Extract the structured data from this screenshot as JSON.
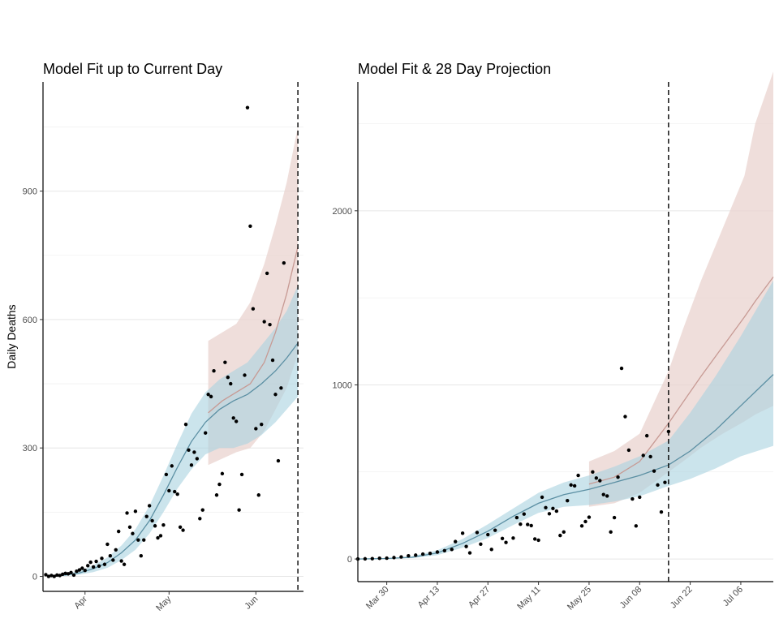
{
  "chart_data": [
    {
      "type": "line",
      "title": "Model Fit up to Current Day",
      "xlabel": "",
      "ylabel": "Daily Deaths",
      "x_range": [
        "2020-03-17",
        "2020-06-18"
      ],
      "ylim": [
        -35,
        1155
      ],
      "y_ticks": [
        0,
        300,
        600,
        900
      ],
      "y_minor_grid": [
        150,
        450,
        750,
        1050
      ],
      "x_ticks": [
        {
          "date": "2020-04-01",
          "label": "Apr"
        },
        {
          "date": "2020-05-01",
          "label": "May"
        },
        {
          "date": "2020-06-01",
          "label": "Jun"
        }
      ],
      "current_day": "2020-06-16",
      "grid": "horizontal",
      "colors": {
        "teal_line": "#5b8fa3",
        "teal_band": "#a9d2df",
        "pink_line": "#c79a94",
        "pink_band": "#ead3cf",
        "points": "#000000"
      },
      "series": [
        {
          "name": "",
          "style": "pink",
          "x": [
            "2020-05-15",
            "2020-05-20",
            "2020-05-25",
            "2020-05-30",
            "2020-06-04",
            "2020-06-08",
            "2020-06-12",
            "2020-06-16"
          ],
          "y": [
            382,
            410,
            430,
            450,
            500,
            570,
            660,
            770
          ],
          "low": [
            260,
            275,
            290,
            300,
            340,
            390,
            440,
            520
          ],
          "high": [
            550,
            570,
            590,
            640,
            730,
            820,
            920,
            1050
          ]
        },
        {
          "name": "",
          "style": "teal",
          "x": [
            "2020-03-20",
            "2020-03-25",
            "2020-03-30",
            "2020-04-04",
            "2020-04-09",
            "2020-04-14",
            "2020-04-19",
            "2020-04-24",
            "2020-04-29",
            "2020-05-04",
            "2020-05-09",
            "2020-05-14",
            "2020-05-19",
            "2020-05-24",
            "2020-05-29",
            "2020-06-03",
            "2020-06-08",
            "2020-06-12",
            "2020-06-16"
          ],
          "y": [
            1,
            3,
            8,
            18,
            32,
            55,
            85,
            130,
            190,
            255,
            315,
            360,
            390,
            410,
            425,
            450,
            480,
            510,
            545
          ],
          "low": [
            0,
            1,
            4,
            10,
            20,
            38,
            62,
            100,
            150,
            205,
            250,
            285,
            300,
            300,
            310,
            330,
            360,
            390,
            420
          ],
          "high": [
            3,
            6,
            13,
            26,
            44,
            72,
            110,
            165,
            235,
            310,
            380,
            430,
            460,
            480,
            500,
            540,
            580,
            620,
            680
          ]
        }
      ],
      "points": [
        [
          "2020-03-18",
          4
        ],
        [
          "2020-03-19",
          0
        ],
        [
          "2020-03-20",
          2
        ],
        [
          "2020-03-21",
          0
        ],
        [
          "2020-03-22",
          3
        ],
        [
          "2020-03-23",
          2
        ],
        [
          "2020-03-24",
          5
        ],
        [
          "2020-03-25",
          7
        ],
        [
          "2020-03-26",
          6
        ],
        [
          "2020-03-27",
          9
        ],
        [
          "2020-03-28",
          3
        ],
        [
          "2020-03-29",
          12
        ],
        [
          "2020-03-30",
          15
        ],
        [
          "2020-03-31",
          19
        ],
        [
          "2020-04-01",
          14
        ],
        [
          "2020-04-02",
          25
        ],
        [
          "2020-04-03",
          33
        ],
        [
          "2020-04-04",
          22
        ],
        [
          "2020-04-05",
          35
        ],
        [
          "2020-04-06",
          24
        ],
        [
          "2020-04-07",
          42
        ],
        [
          "2020-04-08",
          28
        ],
        [
          "2020-04-09",
          75
        ],
        [
          "2020-04-10",
          48
        ],
        [
          "2020-04-11",
          38
        ],
        [
          "2020-04-12",
          62
        ],
        [
          "2020-04-13",
          105
        ],
        [
          "2020-04-14",
          36
        ],
        [
          "2020-04-15",
          28
        ],
        [
          "2020-04-16",
          148
        ],
        [
          "2020-04-17",
          115
        ],
        [
          "2020-04-18",
          100
        ],
        [
          "2020-04-19",
          152
        ],
        [
          "2020-04-20",
          85
        ],
        [
          "2020-04-21",
          48
        ],
        [
          "2020-04-22",
          85
        ],
        [
          "2020-04-23",
          140
        ],
        [
          "2020-04-24",
          165
        ],
        [
          "2020-04-25",
          130
        ],
        [
          "2020-04-26",
          118
        ],
        [
          "2020-04-27",
          90
        ],
        [
          "2020-04-28",
          95
        ],
        [
          "2020-04-29",
          120
        ],
        [
          "2020-04-30",
          238
        ],
        [
          "2020-05-01",
          200
        ],
        [
          "2020-05-02",
          258
        ],
        [
          "2020-05-03",
          198
        ],
        [
          "2020-05-04",
          192
        ],
        [
          "2020-05-05",
          115
        ],
        [
          "2020-05-06",
          108
        ],
        [
          "2020-05-07",
          355
        ],
        [
          "2020-05-08",
          295
        ],
        [
          "2020-05-09",
          260
        ],
        [
          "2020-05-10",
          290
        ],
        [
          "2020-05-11",
          275
        ],
        [
          "2020-05-12",
          135
        ],
        [
          "2020-05-13",
          155
        ],
        [
          "2020-05-14",
          335
        ],
        [
          "2020-05-15",
          425
        ],
        [
          "2020-05-16",
          420
        ],
        [
          "2020-05-17",
          480
        ],
        [
          "2020-05-18",
          190
        ],
        [
          "2020-05-19",
          215
        ],
        [
          "2020-05-20",
          240
        ],
        [
          "2020-05-21",
          500
        ],
        [
          "2020-05-22",
          465
        ],
        [
          "2020-05-23",
          450
        ],
        [
          "2020-05-24",
          370
        ],
        [
          "2020-05-25",
          362
        ],
        [
          "2020-05-26",
          155
        ],
        [
          "2020-05-27",
          238
        ],
        [
          "2020-05-28",
          470
        ],
        [
          "2020-05-29",
          1095
        ],
        [
          "2020-05-30",
          818
        ],
        [
          "2020-05-31",
          625
        ],
        [
          "2020-06-01",
          345
        ],
        [
          "2020-06-02",
          190
        ],
        [
          "2020-06-03",
          355
        ],
        [
          "2020-06-04",
          595
        ],
        [
          "2020-06-05",
          708
        ],
        [
          "2020-06-06",
          588
        ],
        [
          "2020-06-07",
          505
        ],
        [
          "2020-06-08",
          425
        ],
        [
          "2020-06-09",
          270
        ],
        [
          "2020-06-10",
          440
        ],
        [
          "2020-06-11",
          732
        ]
      ]
    },
    {
      "type": "line",
      "title": "Model Fit & 28 Day Projection",
      "xlabel": "",
      "ylabel": "",
      "x_range": [
        "2020-03-22",
        "2020-07-15"
      ],
      "ylim": [
        -130,
        2740
      ],
      "y_ticks": [
        0,
        1000,
        2000
      ],
      "y_minor_grid": [
        500,
        1500,
        2500
      ],
      "x_ticks": [
        {
          "date": "2020-03-30",
          "label": "Mar 30"
        },
        {
          "date": "2020-04-13",
          "label": "Apr 13"
        },
        {
          "date": "2020-04-27",
          "label": "Apr 27"
        },
        {
          "date": "2020-05-11",
          "label": "May 11"
        },
        {
          "date": "2020-05-25",
          "label": "May 25"
        },
        {
          "date": "2020-06-08",
          "label": "Jun 08"
        },
        {
          "date": "2020-06-22",
          "label": "Jun 22"
        },
        {
          "date": "2020-07-06",
          "label": "Jul 06"
        }
      ],
      "current_day": "2020-06-16",
      "grid": "horizontal",
      "colors": {
        "teal_line": "#5b8fa3",
        "teal_band": "#a9d2df",
        "pink_line": "#c79a94",
        "pink_band": "#ead3cf",
        "points": "#000000"
      },
      "series": [
        {
          "name": "",
          "style": "pink",
          "x": [
            "2020-05-25",
            "2020-06-01",
            "2020-06-08",
            "2020-06-16",
            "2020-06-20",
            "2020-06-25",
            "2020-07-01",
            "2020-07-07",
            "2020-07-10",
            "2020-07-15"
          ],
          "y": [
            430,
            470,
            560,
            780,
            900,
            1050,
            1220,
            1390,
            1480,
            1620
          ],
          "low": [
            300,
            320,
            380,
            500,
            560,
            640,
            720,
            790,
            830,
            880
          ],
          "high": [
            560,
            620,
            720,
            1080,
            1320,
            1600,
            1900,
            2200,
            2500,
            2800
          ]
        },
        {
          "name": "",
          "style": "teal",
          "x": [
            "2020-03-22",
            "2020-03-30",
            "2020-04-06",
            "2020-04-13",
            "2020-04-20",
            "2020-04-27",
            "2020-05-04",
            "2020-05-11",
            "2020-05-18",
            "2020-05-25",
            "2020-06-01",
            "2020-06-08",
            "2020-06-16",
            "2020-06-22",
            "2020-06-29",
            "2020-07-06",
            "2020-07-15"
          ],
          "y": [
            0,
            3,
            10,
            35,
            90,
            160,
            245,
            320,
            370,
            400,
            440,
            480,
            540,
            620,
            740,
            880,
            1060
          ],
          "low": [
            0,
            1,
            5,
            22,
            65,
            120,
            195,
            265,
            300,
            310,
            330,
            360,
            420,
            460,
            520,
            590,
            650
          ],
          "high": [
            1,
            5,
            16,
            50,
            115,
            200,
            290,
            380,
            440,
            480,
            530,
            590,
            680,
            840,
            1050,
            1280,
            1600
          ]
        }
      ],
      "points": [
        [
          "2020-03-22",
          0
        ],
        [
          "2020-03-24",
          1
        ],
        [
          "2020-03-26",
          2
        ],
        [
          "2020-03-28",
          4
        ],
        [
          "2020-03-30",
          5
        ],
        [
          "2020-04-01",
          8
        ],
        [
          "2020-04-03",
          12
        ],
        [
          "2020-04-05",
          18
        ],
        [
          "2020-04-07",
          22
        ],
        [
          "2020-04-09",
          28
        ],
        [
          "2020-04-11",
          32
        ],
        [
          "2020-04-13",
          40
        ],
        [
          "2020-04-15",
          48
        ],
        [
          "2020-04-17",
          55
        ],
        [
          "2020-04-18",
          100
        ],
        [
          "2020-04-20",
          148
        ],
        [
          "2020-04-21",
          72
        ],
        [
          "2020-04-22",
          35
        ],
        [
          "2020-04-24",
          152
        ],
        [
          "2020-04-25",
          85
        ],
        [
          "2020-04-27",
          140
        ],
        [
          "2020-04-28",
          55
        ],
        [
          "2020-04-29",
          165
        ],
        [
          "2020-05-01",
          118
        ],
        [
          "2020-05-02",
          95
        ],
        [
          "2020-05-04",
          120
        ],
        [
          "2020-05-05",
          238
        ],
        [
          "2020-05-06",
          200
        ],
        [
          "2020-05-07",
          258
        ],
        [
          "2020-05-08",
          198
        ],
        [
          "2020-05-09",
          192
        ],
        [
          "2020-05-10",
          115
        ],
        [
          "2020-05-11",
          108
        ],
        [
          "2020-05-12",
          355
        ],
        [
          "2020-05-13",
          295
        ],
        [
          "2020-05-14",
          260
        ],
        [
          "2020-05-15",
          290
        ],
        [
          "2020-05-16",
          275
        ],
        [
          "2020-05-17",
          135
        ],
        [
          "2020-05-18",
          155
        ],
        [
          "2020-05-19",
          335
        ],
        [
          "2020-05-20",
          425
        ],
        [
          "2020-05-21",
          420
        ],
        [
          "2020-05-22",
          480
        ],
        [
          "2020-05-23",
          190
        ],
        [
          "2020-05-24",
          215
        ],
        [
          "2020-05-25",
          240
        ],
        [
          "2020-05-26",
          500
        ],
        [
          "2020-05-27",
          465
        ],
        [
          "2020-05-28",
          450
        ],
        [
          "2020-05-29",
          370
        ],
        [
          "2020-05-30",
          362
        ],
        [
          "2020-05-31",
          155
        ],
        [
          "2020-06-01",
          238
        ],
        [
          "2020-06-02",
          470
        ],
        [
          "2020-06-03",
          1095
        ],
        [
          "2020-06-04",
          818
        ],
        [
          "2020-06-05",
          625
        ],
        [
          "2020-06-06",
          345
        ],
        [
          "2020-06-07",
          190
        ],
        [
          "2020-06-08",
          355
        ],
        [
          "2020-06-09",
          595
        ],
        [
          "2020-06-10",
          708
        ],
        [
          "2020-06-11",
          588
        ],
        [
          "2020-06-12",
          505
        ],
        [
          "2020-06-13",
          425
        ],
        [
          "2020-06-14",
          270
        ],
        [
          "2020-06-15",
          440
        ],
        [
          "2020-06-16",
          732
        ]
      ]
    }
  ]
}
